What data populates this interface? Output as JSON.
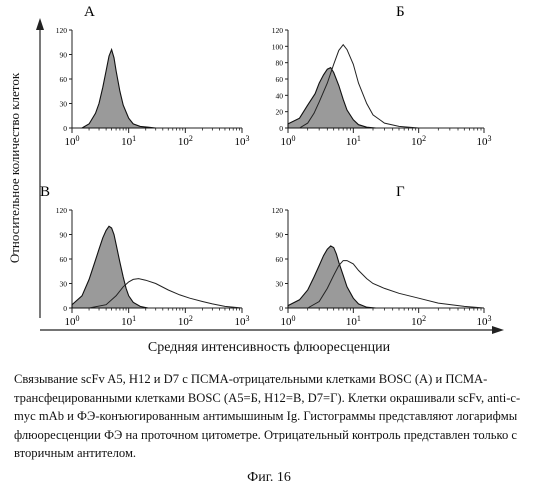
{
  "figure": {
    "ylabel": "Относительное количество клеток",
    "xlabel": "Средняя интенсивность флюоресценции",
    "caption": "Связывание scFv A5, H12 и D7 с ПСМА-отрицательными клетками BOSC (А) и ПСМА-трансфецированными клетками BOSC (А5=Б, H12=В, D7=Г). Клетки окрашивали scFv, anti-c-myc mAb и ФЭ-конъюгированным антимышиным Ig. Гистограммы представляют логарифмы флюоресценции ФЭ на проточном цитометре. Отрицательный контроль представлен только с вторичным антителом.",
    "figure_number": "Фиг. 16"
  },
  "chart_data": [
    {
      "type": "area",
      "panel": "А",
      "xscale": "log",
      "xlim": [
        1,
        1000
      ],
      "ylim": [
        0,
        120
      ],
      "yticks": [
        0,
        30,
        60,
        90,
        120
      ],
      "xticks": [
        "10^0",
        "10^1",
        "10^2",
        "10^3"
      ],
      "series": [
        {
          "role": "control",
          "fill": "#9a9a9a",
          "x": [
            1.5,
            2.0,
            2.6,
            3.0,
            3.5,
            4.0,
            4.5,
            5.0,
            5.5,
            6.0,
            7.0,
            8.0,
            10,
            12,
            16,
            22,
            30
          ],
          "y": [
            0,
            5,
            18,
            30,
            50,
            70,
            88,
            96,
            86,
            70,
            45,
            28,
            12,
            5,
            2,
            1,
            0
          ]
        }
      ]
    },
    {
      "type": "area",
      "panel": "Б",
      "xscale": "log",
      "xlim": [
        1,
        1000
      ],
      "ylim": [
        0,
        120
      ],
      "yticks": [
        0,
        20,
        40,
        60,
        80,
        100,
        120
      ],
      "xticks": [
        "10^0",
        "10^1",
        "10^2",
        "10^3"
      ],
      "series": [
        {
          "role": "control",
          "fill": "#9a9a9a",
          "x": [
            1.0,
            1.5,
            2.0,
            2.6,
            3.0,
            3.5,
            4.0,
            4.5,
            5.0,
            6.0,
            7.0,
            8.0,
            10,
            12,
            16,
            22
          ],
          "y": [
            5,
            12,
            28,
            42,
            55,
            65,
            72,
            74,
            68,
            52,
            35,
            22,
            10,
            4,
            1,
            0
          ]
        },
        {
          "role": "scFv",
          "fill": "none",
          "x": [
            1.5,
            2.0,
            2.5,
            3.0,
            4.0,
            5.0,
            6.0,
            7.0,
            8.0,
            10,
            12,
            16,
            20,
            30,
            50,
            100
          ],
          "y": [
            0,
            6,
            18,
            32,
            55,
            78,
            95,
            102,
            96,
            78,
            55,
            30,
            16,
            6,
            2,
            0
          ]
        }
      ]
    },
    {
      "type": "area",
      "panel": "В",
      "xscale": "log",
      "xlim": [
        1,
        1000
      ],
      "ylim": [
        0,
        120
      ],
      "yticks": [
        0,
        30,
        60,
        90,
        120
      ],
      "xticks": [
        "10^0",
        "10^1",
        "10^2",
        "10^3"
      ],
      "series": [
        {
          "role": "control",
          "fill": "#9a9a9a",
          "x": [
            1.0,
            1.5,
            2.0,
            2.5,
            3.0,
            3.5,
            4.0,
            4.5,
            5.0,
            5.5,
            6.0,
            7.0,
            8.0,
            9.0,
            10,
            12,
            16,
            22
          ],
          "y": [
            4,
            15,
            35,
            55,
            72,
            86,
            95,
            100,
            98,
            90,
            78,
            56,
            38,
            24,
            15,
            7,
            2,
            0
          ]
        },
        {
          "role": "scFv",
          "fill": "none",
          "x": [
            2.0,
            4.0,
            6.0,
            8.0,
            10,
            12,
            15,
            20,
            30,
            50,
            80,
            120,
            200,
            300,
            500,
            1000
          ],
          "y": [
            0,
            4,
            15,
            26,
            32,
            35,
            36,
            34,
            30,
            22,
            16,
            12,
            8,
            5,
            2,
            0
          ]
        }
      ]
    },
    {
      "type": "area",
      "panel": "Г",
      "xscale": "log",
      "xlim": [
        1,
        1000
      ],
      "ylim": [
        0,
        120
      ],
      "yticks": [
        0,
        30,
        60,
        90,
        120
      ],
      "xticks": [
        "10^0",
        "10^1",
        "10^2",
        "10^3"
      ],
      "series": [
        {
          "role": "control",
          "fill": "#9a9a9a",
          "x": [
            1.0,
            1.5,
            2.0,
            2.5,
            3.0,
            3.5,
            4.0,
            4.5,
            5.0,
            5.5,
            6.0,
            7.0,
            8.0,
            10,
            12,
            16,
            22
          ],
          "y": [
            3,
            10,
            22,
            38,
            52,
            64,
            72,
            76,
            74,
            66,
            56,
            40,
            26,
            12,
            5,
            1,
            0
          ]
        },
        {
          "role": "scFv",
          "fill": "none",
          "x": [
            2.0,
            3.0,
            4.0,
            5.0,
            6.0,
            7.0,
            8.0,
            10,
            12,
            16,
            20,
            30,
            50,
            100,
            200,
            500,
            1000
          ],
          "y": [
            0,
            8,
            24,
            40,
            52,
            58,
            58,
            54,
            46,
            36,
            30,
            24,
            18,
            12,
            6,
            2,
            0
          ]
        }
      ]
    }
  ]
}
